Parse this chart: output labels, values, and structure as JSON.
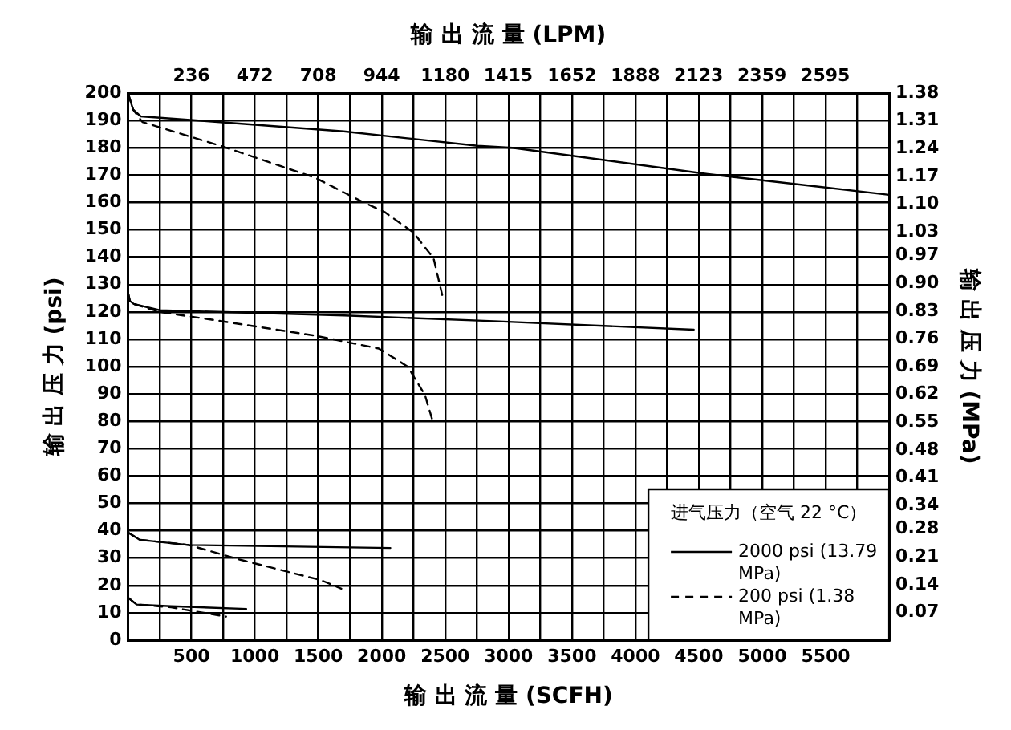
{
  "chart_data": {
    "type": "line",
    "xlabel": "输 出 流 量 (SCFH)",
    "x2label": "输 出 流 量 (LPM)",
    "ylabel": "输 出 压 力 (psi)",
    "y2label": "输 出 压 力 (MPa)",
    "legend_title": "进气压力（空气 22 °C）",
    "xlim": [
      0,
      6000
    ],
    "xticks": [
      {
        "value": 0,
        "label": null
      },
      {
        "value": 250,
        "label": null
      },
      500,
      {
        "value": 750,
        "label": null
      },
      1000,
      {
        "value": 1250,
        "label": null
      },
      1500,
      {
        "value": 1750,
        "label": null
      },
      2000,
      {
        "value": 2250,
        "label": null
      },
      2500,
      {
        "value": 2750,
        "label": null
      },
      3000,
      {
        "value": 3250,
        "label": null
      },
      3500,
      {
        "value": 3750,
        "label": null
      },
      4000,
      {
        "value": 4250,
        "label": null
      },
      4500,
      {
        "value": 4750,
        "label": null
      },
      5000,
      {
        "value": 5250,
        "label": null
      },
      5500,
      {
        "value": 5750,
        "label": null
      },
      {
        "value": 6000,
        "label": null
      }
    ],
    "x2lim": [
      0,
      2832
    ],
    "x2ticks": [
      236,
      472,
      708,
      944,
      1180,
      1415,
      1652,
      1888,
      2123,
      2359,
      2595
    ],
    "ylim": [
      0,
      200
    ],
    "yticks": [
      0,
      10,
      20,
      30,
      40,
      50,
      60,
      70,
      80,
      90,
      100,
      110,
      120,
      130,
      140,
      150,
      160,
      170,
      180,
      190,
      200
    ],
    "y2lim": [
      0,
      1.38
    ],
    "y2ticks": [
      0.07,
      0.14,
      0.21,
      0.28,
      0.34,
      0.41,
      0.48,
      0.55,
      0.62,
      0.69,
      0.76,
      0.83,
      {
        "value": 0.9,
        "label": "0.90"
      },
      0.97,
      1.03,
      {
        "value": 1.1,
        "label": "1.10"
      },
      1.17,
      1.24,
      1.31,
      1.38
    ],
    "grid": true,
    "legend": "bottom right",
    "series": [
      {
        "name": "2000 psi (13.79 MPa)",
        "color": "#000000",
        "line_style": "solid",
        "x": [
          0,
          40,
          100,
          600,
          1700,
          2755,
          3030,
          4570,
          6000
        ],
        "values": [
          200,
          194,
          191.5,
          189.8,
          186,
          180.7,
          180,
          170.4,
          162.8
        ]
      },
      {
        "name": "200 psi (1.38 MPa)",
        "color": "#000000",
        "line_style": "dashed",
        "x": [
          0,
          40,
          114,
          750,
          1477,
          1841,
          2023,
          2250,
          2409,
          2477
        ],
        "values": [
          200,
          194,
          189.4,
          180.4,
          169,
          160.4,
          156.5,
          149,
          139.6,
          126.2
        ]
      },
      {
        "color": "#000000",
        "line_style": "solid",
        "x": [
          0,
          15,
          45,
          250,
          1705,
          2886,
          4460
        ],
        "values": [
          127.1,
          124,
          122.9,
          120.6,
          118.7,
          116.6,
          113.5
        ]
      },
      {
        "color": "#000000",
        "line_style": "dashed",
        "x": [
          0,
          15,
          45,
          250,
          795,
          1477,
          1977,
          2205,
          2341,
          2409
        ],
        "values": [
          127.1,
          124,
          122.9,
          120,
          116.2,
          111.3,
          106.6,
          100,
          89.6,
          79
        ]
      },
      {
        "color": "#000000",
        "line_style": "solid",
        "x": [
          0,
          91,
          477,
          2068
        ],
        "values": [
          39.4,
          36.7,
          34.8,
          33.7
        ]
      },
      {
        "color": "#000000",
        "line_style": "dashed",
        "x": [
          0,
          91,
          477,
          886,
          1523,
          1682
        ],
        "values": [
          39.4,
          36.7,
          34.8,
          29.4,
          21.9,
          18.8
        ]
      },
      {
        "color": "#000000",
        "line_style": "solid",
        "x": [
          0,
          68,
          340,
          932
        ],
        "values": [
          15.6,
          13,
          12.4,
          11.4
        ]
      },
      {
        "color": "#000000",
        "line_style": "dashed",
        "x": [
          0,
          68,
          340,
          773
        ],
        "values": [
          15.6,
          13,
          12,
          8.6
        ]
      }
    ]
  }
}
